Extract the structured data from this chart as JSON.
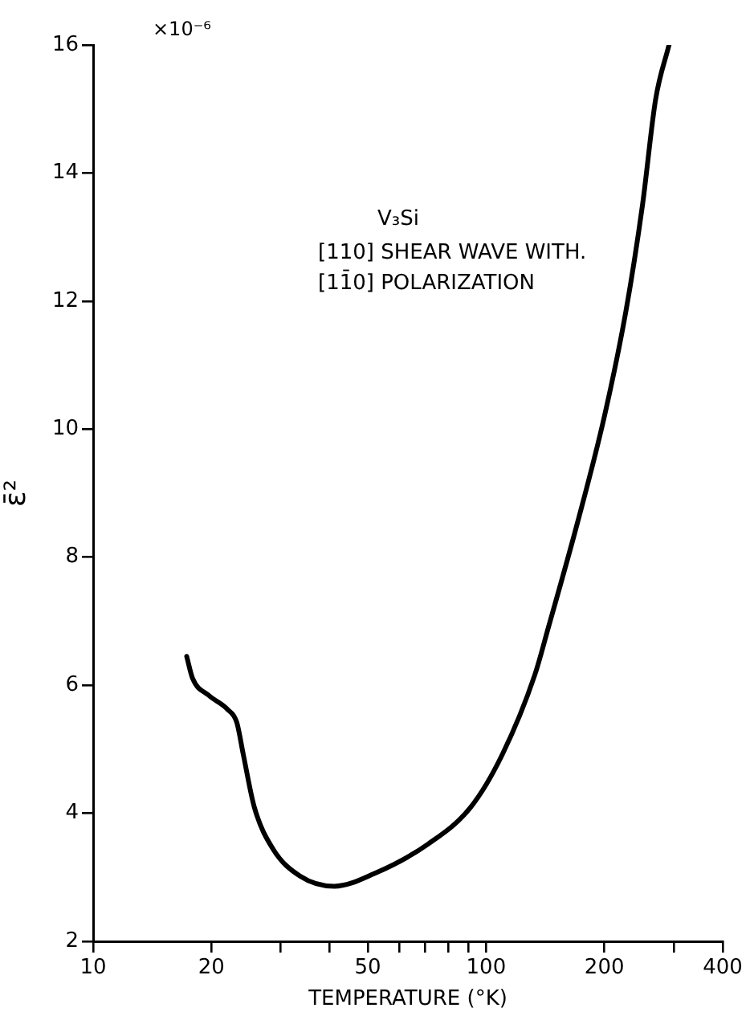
{
  "chart_data": {
    "type": "line",
    "xlabel": "TEMPERATURE (°K)",
    "ylabel": "ε̄²",
    "annotations": [
      "×10⁻⁶",
      "V₃Si",
      "[110] SHEAR WAVE WITH.",
      "[11̄0] POLARIZATION"
    ],
    "log": "x",
    "xlim": [
      10,
      400
    ],
    "ylim": [
      2,
      16
    ],
    "xticks": [
      10,
      20,
      {
        "value": 30,
        "label": null
      },
      {
        "value": 40,
        "label": null
      },
      50,
      {
        "value": 60,
        "label": null
      },
      {
        "value": 70,
        "label": null
      },
      {
        "value": 80,
        "label": null
      },
      {
        "value": 90,
        "label": null
      },
      100,
      200,
      {
        "value": 300,
        "label": null
      },
      400
    ],
    "yticks": [
      2,
      4,
      6,
      8,
      10,
      12,
      14,
      16
    ],
    "grid": false,
    "legend": false,
    "marker": "none",
    "line_style": "solid",
    "series": [
      {
        "color": "#000000",
        "x": [
          17.3,
          17.9,
          19.7,
          22.0,
          23.2,
          24.1,
          25.7,
          28.7,
          33.6,
          41.1,
          52.0,
          71.2,
          91.5,
          110,
          133,
          144,
          171,
          200,
          227,
          250,
          270,
          292
        ],
        "values": [
          6.45,
          6.11,
          5.84,
          5.62,
          5.42,
          4.92,
          4.1,
          3.44,
          3.02,
          2.86,
          3.06,
          3.52,
          4.1,
          4.92,
          6.16,
          6.9,
          8.55,
          10.2,
          11.85,
          13.5,
          15.15,
          16.0
        ]
      }
    ]
  }
}
